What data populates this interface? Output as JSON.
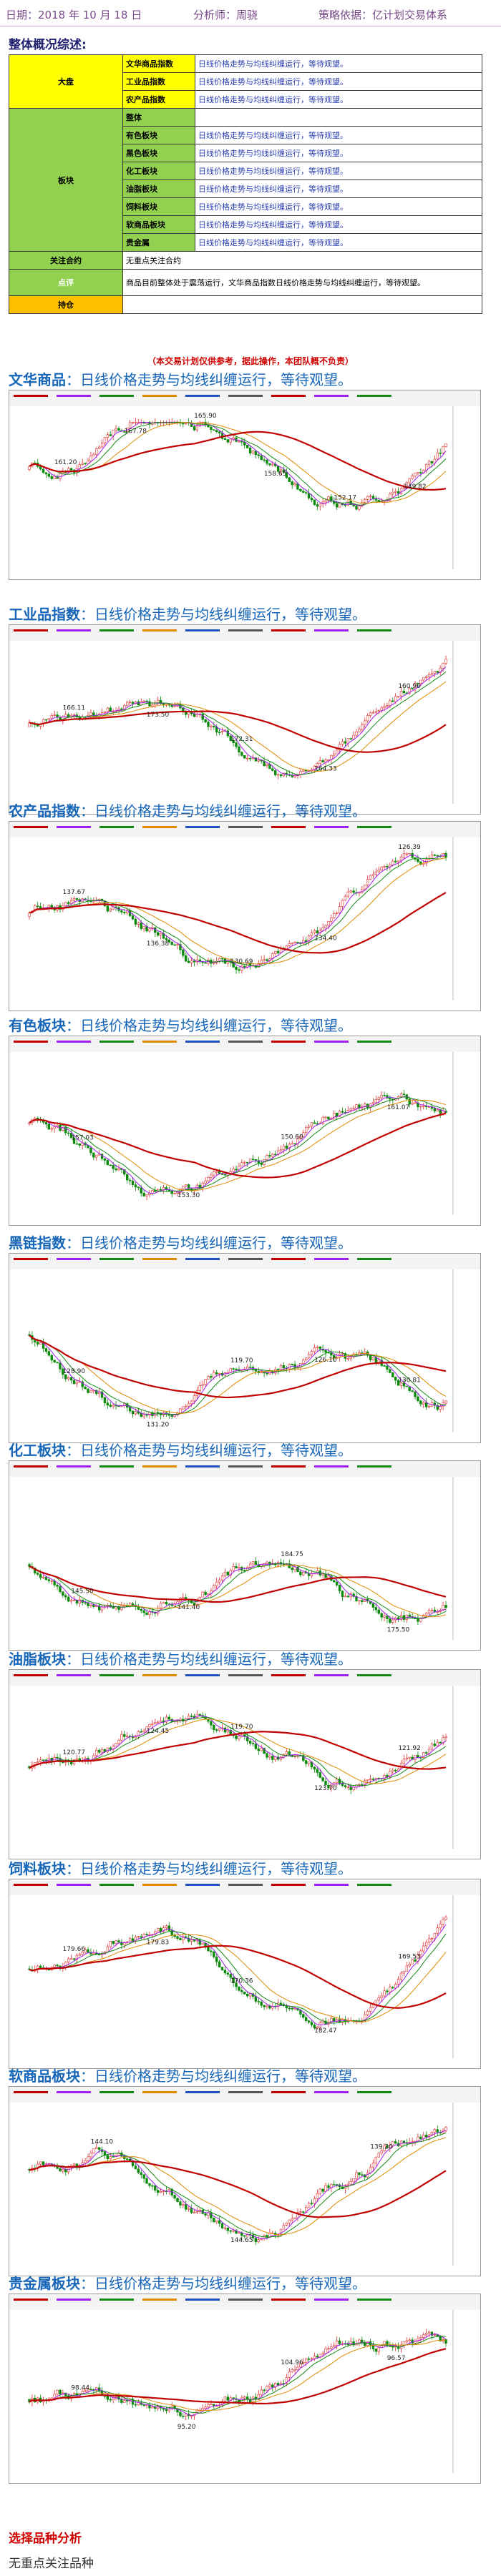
{
  "header": {
    "date": "日期：2018 年 10 月 18 日",
    "analyst": "分析师：周骁",
    "basis": "策略依据：亿计划交易体系"
  },
  "overview": {
    "title": "整体概况综述:",
    "rows": [
      {
        "category": "大盘",
        "name": "文华商品指数",
        "desc": "日线价格走势与均线纠缠运行，等待观望。"
      },
      {
        "category": "",
        "name": "工业品指数",
        "desc": "日线价格走势与均线纠缠运行，等待观望。"
      },
      {
        "category": "",
        "name": "农产品指数",
        "desc": "日线价格走势与均线纠缠运行，等待观望。"
      },
      {
        "category": "板块",
        "name": "整体",
        "desc": ""
      },
      {
        "category": "",
        "name": "有色板块",
        "desc": "日线价格走势与均线纠缠运行，等待观望。"
      },
      {
        "category": "",
        "name": "黑色板块",
        "desc": "日线价格走势与均线纠缠运行，等待观望。"
      },
      {
        "category": "",
        "name": "化工板块",
        "desc": "日线价格走势与均线纠缠运行，等待观望。"
      },
      {
        "category": "",
        "name": "油脂板块",
        "desc": "日线价格走势与均线纠缠运行，等待观望。"
      },
      {
        "category": "",
        "name": "饲料板块",
        "desc": "日线价格走势与均线纠缠运行，等待观望。"
      },
      {
        "category": "",
        "name": "软商品板块",
        "desc": "日线价格走势与均线纠缠运行，等待观望。"
      },
      {
        "category": "",
        "name": "贵金属",
        "desc": "日线价格走势与均线纠缠运行，等待观望。"
      }
    ],
    "focus_label": "关注合约",
    "focus_value": "无重点关注合约",
    "summary_label": "点评",
    "summary_value": "商品目前整体处于震荡运行，文华商品指数日线价格走势与均线纠缠运行，等待观望。",
    "hold_label": "持仓",
    "hold_value": ""
  },
  "disclaimer": "（本交易计划仅供参考，据此操作，本团队概不负责）",
  "sections": [
    {
      "name": "文华商品",
      "text": "：日线价格走势与均线纠缠运行，等待观望。",
      "price_labels": [
        "161.20",
        "167.78",
        "165.90",
        "158.65",
        "152.17",
        "149.82"
      ]
    },
    {
      "name": "工业品指数",
      "text": "：日线价格走势与均线纠缠运行，等待观望。",
      "price_labels": [
        "166.11",
        "173.50",
        "172.31",
        "164.33",
        "160.90"
      ]
    },
    {
      "name": "农产品指数",
      "text": "：日线价格走势与均线纠缠运行，等待观望。",
      "price_labels": [
        "137.67",
        "136.38",
        "130.69",
        "134.40",
        "126.39"
      ]
    },
    {
      "name": "有色板块",
      "text": "：日线价格走势与均线纠缠运行，等待观望。",
      "price_labels": [
        "157.03",
        "153.30",
        "150.60",
        "161.07"
      ]
    },
    {
      "name": "黑链指数",
      "text": "：日线价格走势与均线纠缠运行，等待观望。",
      "price_labels": [
        "128.90",
        "131.20",
        "119.70",
        "126.10",
        "130.81"
      ]
    },
    {
      "name": "化工板块",
      "text": "：日线价格走势与均线纠缠运行，等待观望。",
      "price_labels": [
        "145.50",
        "141.40",
        "184.75",
        "175.50"
      ]
    },
    {
      "name": "油脂板块",
      "text": "：日线价格走势与均线纠缠运行，等待观望。",
      "price_labels": [
        "120.77",
        "124.45",
        "119.70",
        "123.70",
        "121.92"
      ]
    },
    {
      "name": "饲料板块",
      "text": "：日线价格走势与均线纠缠运行，等待观望。",
      "price_labels": [
        "179.66",
        "179.83",
        "170.36",
        "182.47",
        "169.53"
      ]
    },
    {
      "name": "软商品板块",
      "text": "：日线价格走势与均线纠缠运行，等待观望。",
      "price_labels": [
        "144.10",
        "144.65",
        "139.20"
      ]
    },
    {
      "name": "贵金属板块",
      "text": "：日线价格走势与均线纠缠运行，等待观望。",
      "price_labels": [
        "98.44",
        "95.20",
        "104.96",
        "96.57"
      ]
    }
  ],
  "footer": {
    "title": "选择品种分析",
    "text": "无重点关注品种"
  },
  "colors": {
    "section_title": "#1766b8",
    "ma_red": "#c00000",
    "ma_purple": "#a020f0",
    "ma_green": "#138a13",
    "candle_up": "#e03030",
    "candle_down": "#0a8a0a"
  }
}
